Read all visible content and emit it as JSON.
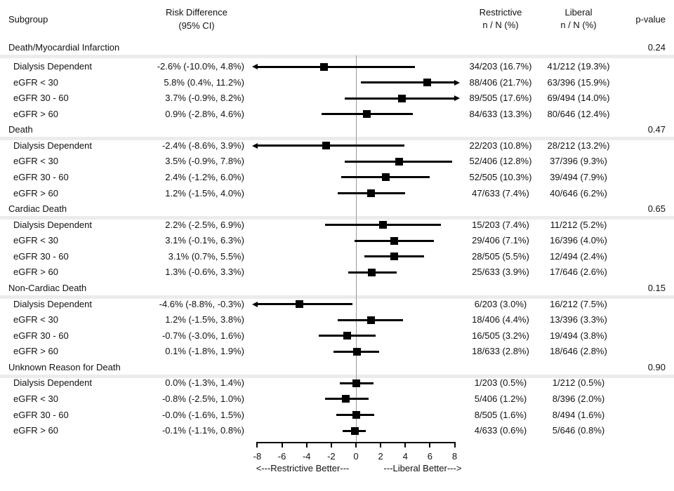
{
  "chart_data": {
    "type": "forest",
    "columns": {
      "subgroup": "Subgroup",
      "risk_line1": "Risk Difference",
      "risk_line2": "(95% CI)",
      "restrictive_line1": "Restrictive",
      "restrictive_line2": "n / N (%)",
      "liberal_line1": "Liberal",
      "liberal_line2": "n / N (%)",
      "p_value": "p-value"
    },
    "axis": {
      "min": -8,
      "max": 8,
      "ticks": [
        -8,
        -6,
        -4,
        -2,
        0,
        2,
        4,
        6,
        8
      ],
      "left_direction_label": "<---Restrictive Better---",
      "right_direction_label": "---Liberal Better--->"
    },
    "colors": {
      "marker": "#000000",
      "zero_line": "#999999",
      "section_band": "#ececec",
      "text": "#111111"
    },
    "sections": [
      {
        "name": "Death/Myocardial Infarction",
        "p_value": "0.24",
        "rows": [
          {
            "label": "Dialysis Dependent",
            "rd_text": "-2.6% (-10.0%, 4.8%)",
            "estimate": -2.6,
            "ci_low": -10.0,
            "ci_high": 4.8,
            "restrictive": "34/203 (16.7%)",
            "liberal": "41/212 (19.3%)"
          },
          {
            "label": "eGFR < 30",
            "rd_text": "5.8% (0.4%, 11.2%)",
            "estimate": 5.8,
            "ci_low": 0.4,
            "ci_high": 11.2,
            "restrictive": "88/406 (21.7%)",
            "liberal": "63/396 (15.9%)"
          },
          {
            "label": "eGFR 30 - 60",
            "rd_text": "3.7% (-0.9%, 8.2%)",
            "estimate": 3.7,
            "ci_low": -0.9,
            "ci_high": 8.2,
            "restrictive": "89/505 (17.6%)",
            "liberal": "69/494 (14.0%)"
          },
          {
            "label": "eGFR > 60",
            "rd_text": "0.9% (-2.8%, 4.6%)",
            "estimate": 0.9,
            "ci_low": -2.8,
            "ci_high": 4.6,
            "restrictive": "84/633 (13.3%)",
            "liberal": "80/646 (12.4%)"
          }
        ]
      },
      {
        "name": "Death",
        "p_value": "0.47",
        "rows": [
          {
            "label": "Dialysis Dependent",
            "rd_text": "-2.4% (-8.6%, 3.9%)",
            "estimate": -2.4,
            "ci_low": -8.6,
            "ci_high": 3.9,
            "restrictive": "22/203 (10.8%)",
            "liberal": "28/212 (13.2%)"
          },
          {
            "label": "eGFR < 30",
            "rd_text": "3.5% (-0.9%, 7.8%)",
            "estimate": 3.5,
            "ci_low": -0.9,
            "ci_high": 7.8,
            "restrictive": "52/406 (12.8%)",
            "liberal": "37/396 (9.3%)"
          },
          {
            "label": "eGFR 30 - 60",
            "rd_text": "2.4% (-1.2%, 6.0%)",
            "estimate": 2.4,
            "ci_low": -1.2,
            "ci_high": 6.0,
            "restrictive": "52/505 (10.3%)",
            "liberal": "39/494 (7.9%)"
          },
          {
            "label": "eGFR > 60",
            "rd_text": "1.2% (-1.5%, 4.0%)",
            "estimate": 1.2,
            "ci_low": -1.5,
            "ci_high": 4.0,
            "restrictive": "47/633 (7.4%)",
            "liberal": "40/646 (6.2%)"
          }
        ]
      },
      {
        "name": "Cardiac Death",
        "p_value": "0.65",
        "rows": [
          {
            "label": "Dialysis Dependent",
            "rd_text": "2.2% (-2.5%, 6.9%)",
            "estimate": 2.2,
            "ci_low": -2.5,
            "ci_high": 6.9,
            "restrictive": "15/203 (7.4%)",
            "liberal": "11/212 (5.2%)"
          },
          {
            "label": "eGFR < 30",
            "rd_text": "3.1% (-0.1%, 6.3%)",
            "estimate": 3.1,
            "ci_low": -0.1,
            "ci_high": 6.3,
            "restrictive": "29/406 (7.1%)",
            "liberal": "16/396 (4.0%)"
          },
          {
            "label": "eGFR 30 - 60",
            "rd_text": "3.1% (0.7%, 5.5%)",
            "estimate": 3.1,
            "ci_low": 0.7,
            "ci_high": 5.5,
            "restrictive": "28/505 (5.5%)",
            "liberal": "12/494 (2.4%)"
          },
          {
            "label": "eGFR > 60",
            "rd_text": "1.3% (-0.6%, 3.3%)",
            "estimate": 1.3,
            "ci_low": -0.6,
            "ci_high": 3.3,
            "restrictive": "25/633 (3.9%)",
            "liberal": "17/646 (2.6%)"
          }
        ]
      },
      {
        "name": "Non-Cardiac Death",
        "p_value": "0.15",
        "rows": [
          {
            "label": "Dialysis Dependent",
            "rd_text": "-4.6% (-8.8%, -0.3%)",
            "estimate": -4.6,
            "ci_low": -8.8,
            "ci_high": -0.3,
            "restrictive": "6/203 (3.0%)",
            "liberal": "16/212 (7.5%)"
          },
          {
            "label": "eGFR < 30",
            "rd_text": "1.2% (-1.5%, 3.8%)",
            "estimate": 1.2,
            "ci_low": -1.5,
            "ci_high": 3.8,
            "restrictive": "18/406 (4.4%)",
            "liberal": "13/396 (3.3%)"
          },
          {
            "label": "eGFR 30 - 60",
            "rd_text": "-0.7% (-3.0%, 1.6%)",
            "estimate": -0.7,
            "ci_low": -3.0,
            "ci_high": 1.6,
            "restrictive": "16/505 (3.2%)",
            "liberal": "19/494 (3.8%)"
          },
          {
            "label": "eGFR > 60",
            "rd_text": "0.1% (-1.8%, 1.9%)",
            "estimate": 0.1,
            "ci_low": -1.8,
            "ci_high": 1.9,
            "restrictive": "18/633 (2.8%)",
            "liberal": "18/646 (2.8%)"
          }
        ]
      },
      {
        "name": "Unknown Reason for Death",
        "p_value": "0.90",
        "rows": [
          {
            "label": "Dialysis Dependent",
            "rd_text": "0.0% (-1.3%, 1.4%)",
            "estimate": 0.0,
            "ci_low": -1.3,
            "ci_high": 1.4,
            "restrictive": "1/203 (0.5%)",
            "liberal": "1/212 (0.5%)"
          },
          {
            "label": "eGFR < 30",
            "rd_text": "-0.8% (-2.5%, 1.0%)",
            "estimate": -0.8,
            "ci_low": -2.5,
            "ci_high": 1.0,
            "restrictive": "5/406 (1.2%)",
            "liberal": "8/396 (2.0%)"
          },
          {
            "label": "eGFR 30 - 60",
            "rd_text": "-0.0% (-1.6%, 1.5%)",
            "estimate": -0.0,
            "ci_low": -1.6,
            "ci_high": 1.5,
            "restrictive": "8/505 (1.6%)",
            "liberal": "8/494 (1.6%)"
          },
          {
            "label": "eGFR > 60",
            "rd_text": "-0.1% (-1.1%, 0.8%)",
            "estimate": -0.1,
            "ci_low": -1.1,
            "ci_high": 0.8,
            "restrictive": "4/633 (0.6%)",
            "liberal": "5/646 (0.8%)"
          }
        ]
      }
    ]
  }
}
